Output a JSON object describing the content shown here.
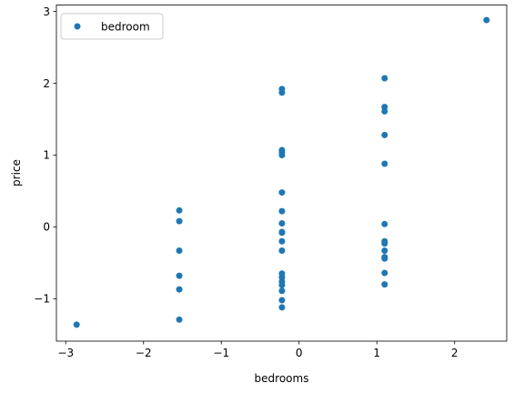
{
  "chart_data": {
    "type": "scatter",
    "title": "",
    "xlabel": "bedrooms",
    "ylabel": "price",
    "xlim": [
      -3.12,
      2.67
    ],
    "ylim": [
      -1.59,
      3.09
    ],
    "xticks": [
      -3,
      -2,
      -1,
      0,
      1,
      2
    ],
    "yticks": [
      -1,
      0,
      1,
      2,
      3
    ],
    "grid": false,
    "legend_position": "upper-left",
    "series": [
      {
        "name": "bedroom",
        "color": "#1f77b4",
        "marker": "circle",
        "points": [
          {
            "x": -2.86,
            "y": -1.36
          },
          {
            "x": -1.54,
            "y": 0.23
          },
          {
            "x": -1.54,
            "y": 0.08
          },
          {
            "x": -1.54,
            "y": -0.33
          },
          {
            "x": -1.54,
            "y": -0.68
          },
          {
            "x": -1.54,
            "y": -0.87
          },
          {
            "x": -1.54,
            "y": -1.29
          },
          {
            "x": -0.22,
            "y": 1.92
          },
          {
            "x": -0.22,
            "y": 1.87
          },
          {
            "x": -0.22,
            "y": 1.07
          },
          {
            "x": -0.22,
            "y": 1.04
          },
          {
            "x": -0.22,
            "y": 1.0
          },
          {
            "x": -0.22,
            "y": 0.48
          },
          {
            "x": -0.22,
            "y": 0.22
          },
          {
            "x": -0.22,
            "y": 0.05
          },
          {
            "x": -0.22,
            "y": -0.07
          },
          {
            "x": -0.22,
            "y": -0.08
          },
          {
            "x": -0.22,
            "y": -0.2
          },
          {
            "x": -0.22,
            "y": -0.33
          },
          {
            "x": -0.22,
            "y": -0.65
          },
          {
            "x": -0.22,
            "y": -0.7
          },
          {
            "x": -0.22,
            "y": -0.76
          },
          {
            "x": -0.22,
            "y": -0.81
          },
          {
            "x": -0.22,
            "y": -0.89
          },
          {
            "x": -0.22,
            "y": -1.02
          },
          {
            "x": -0.22,
            "y": -1.12
          },
          {
            "x": 1.1,
            "y": 2.07
          },
          {
            "x": 1.1,
            "y": 1.67
          },
          {
            "x": 1.1,
            "y": 1.61
          },
          {
            "x": 1.1,
            "y": 1.28
          },
          {
            "x": 1.1,
            "y": 0.88
          },
          {
            "x": 1.1,
            "y": 0.04
          },
          {
            "x": 1.1,
            "y": -0.2
          },
          {
            "x": 1.1,
            "y": -0.23
          },
          {
            "x": 1.1,
            "y": -0.33
          },
          {
            "x": 1.1,
            "y": -0.42
          },
          {
            "x": 1.1,
            "y": -0.44
          },
          {
            "x": 1.1,
            "y": -0.64
          },
          {
            "x": 1.1,
            "y": -0.8
          },
          {
            "x": 2.41,
            "y": 2.88
          }
        ]
      }
    ]
  }
}
